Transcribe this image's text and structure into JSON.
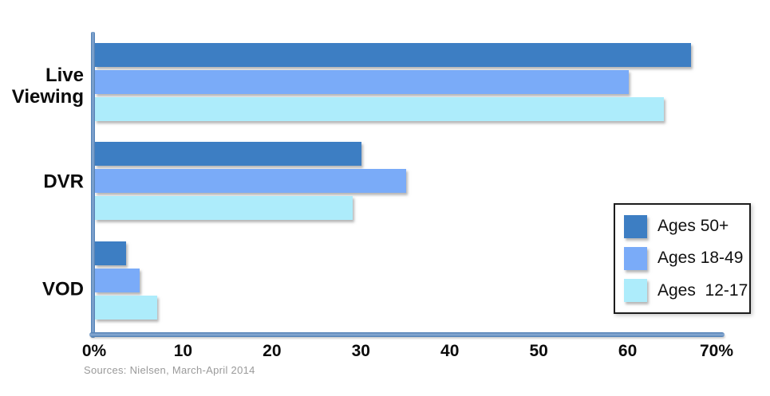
{
  "chart_data": {
    "type": "bar",
    "orientation": "horizontal",
    "title": "",
    "categories": [
      "Live Viewing",
      "DVR",
      "VOD"
    ],
    "series": [
      {
        "name": "Ages 50+",
        "color": "#3D7EC3",
        "values": [
          67,
          30,
          3.5
        ]
      },
      {
        "name": "Ages 18-49",
        "color": "#7AABF8",
        "values": [
          60,
          35,
          5
        ]
      },
      {
        "name": "Ages  12-17",
        "color": "#ADECFB",
        "values": [
          64,
          29,
          7
        ]
      }
    ],
    "x_axis": {
      "min": 0,
      "max": 70,
      "unit": "%",
      "ticks": [
        "0%",
        "10",
        "20",
        "30",
        "40",
        "50",
        "60",
        "70%"
      ]
    },
    "grid": "off",
    "legend_position": "right",
    "axis_color": "#4d7db3",
    "source": "Sources: Nielsen, March-April 2014"
  }
}
